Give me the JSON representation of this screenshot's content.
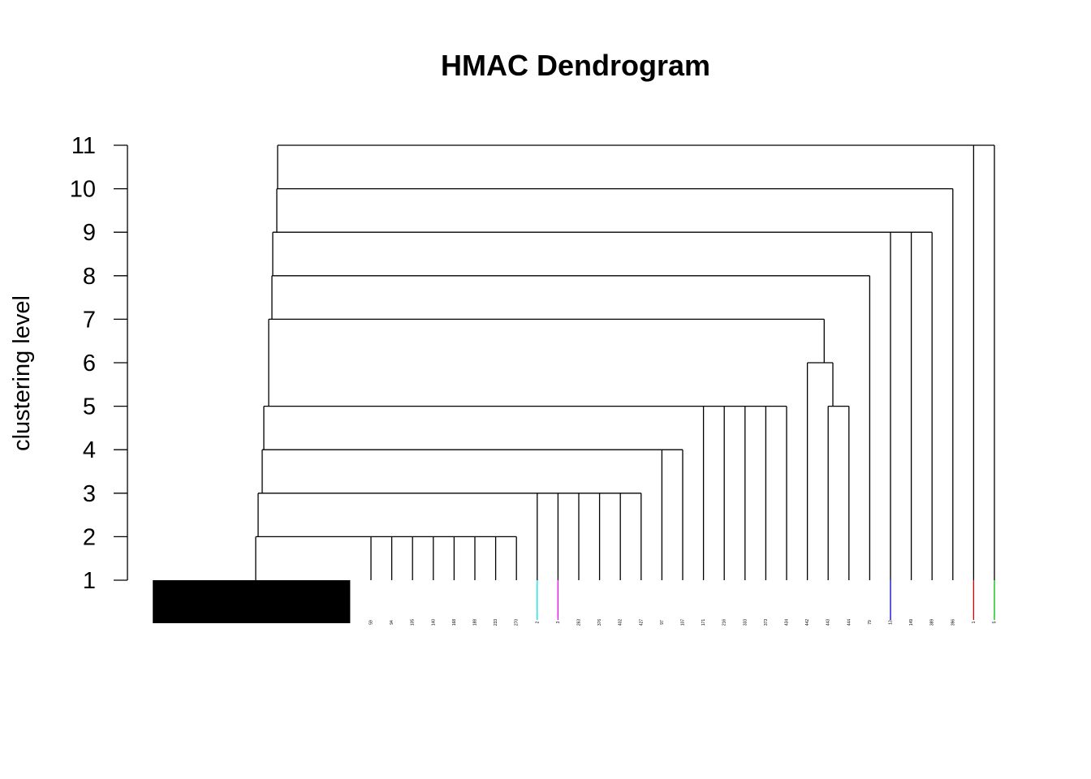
{
  "chart_data": {
    "type": "dendrogram",
    "title": "HMAC Dendrogram",
    "ylabel": "clustering level",
    "xlabel": "",
    "ylim": [
      1,
      11
    ],
    "y_ticks": [
      1,
      2,
      3,
      4,
      5,
      6,
      7,
      8,
      9,
      10,
      11
    ],
    "grid": false,
    "legend": "none",
    "dense_leaf_block": {
      "x_start": 0.5,
      "x_end": 10.0
    },
    "leaves": [
      {
        "label": "59",
        "color": "#000000"
      },
      {
        "label": "94",
        "color": "#000000"
      },
      {
        "label": "105",
        "color": "#000000"
      },
      {
        "label": "140",
        "color": "#000000"
      },
      {
        "label": "168",
        "color": "#000000"
      },
      {
        "label": "188",
        "color": "#000000"
      },
      {
        "label": "233",
        "color": "#000000"
      },
      {
        "label": "270",
        "color": "#000000"
      },
      {
        "label": "2",
        "color": "#00e5ee"
      },
      {
        "label": "3",
        "color": "#ff00ff"
      },
      {
        "label": "263",
        "color": "#000000"
      },
      {
        "label": "376",
        "color": "#000000"
      },
      {
        "label": "402",
        "color": "#000000"
      },
      {
        "label": "427",
        "color": "#000000"
      },
      {
        "label": "97",
        "color": "#000000"
      },
      {
        "label": "107",
        "color": "#000000"
      },
      {
        "label": "171",
        "color": "#000000"
      },
      {
        "label": "216",
        "color": "#000000"
      },
      {
        "label": "333",
        "color": "#000000"
      },
      {
        "label": "373",
        "color": "#000000"
      },
      {
        "label": "434",
        "color": "#000000"
      },
      {
        "label": "442",
        "color": "#000000"
      },
      {
        "label": "443",
        "color": "#000000"
      },
      {
        "label": "444",
        "color": "#000000"
      },
      {
        "label": "79",
        "color": "#000000"
      },
      {
        "label": "13",
        "color": "#0000cd"
      },
      {
        "label": "149",
        "color": "#000000"
      },
      {
        "label": "389",
        "color": "#000000"
      },
      {
        "label": "396",
        "color": "#000000"
      },
      {
        "label": "1",
        "color": "#dd0000"
      },
      {
        "label": "5",
        "color": "#00bb00"
      }
    ],
    "merges": [
      {
        "level": 2,
        "x": 4.7,
        "children": [
          [
            "cluster",
            1.2
          ],
          [
            "leaf",
            11
          ],
          [
            "leaf",
            12
          ],
          [
            "leaf",
            13
          ],
          [
            "leaf",
            14
          ],
          [
            "leaf",
            15
          ],
          [
            "leaf",
            16
          ],
          [
            "leaf",
            17
          ],
          [
            "leaf",
            18
          ]
        ]
      },
      {
        "level": 3,
        "x": 5.65,
        "children": [
          [
            "node",
            0
          ],
          [
            "leaf",
            19
          ],
          [
            "leaf",
            20
          ],
          [
            "leaf",
            21
          ],
          [
            "leaf",
            22
          ],
          [
            "leaf",
            23
          ],
          [
            "leaf",
            24
          ]
        ]
      },
      {
        "level": 4,
        "x": 5.9,
        "children": [
          [
            "node",
            1
          ],
          [
            "leaf",
            25
          ],
          [
            "leaf",
            26
          ]
        ]
      },
      {
        "level": 5,
        "x": 6.25,
        "children": [
          [
            "node",
            2
          ],
          [
            "leaf",
            27
          ],
          [
            "leaf",
            28
          ],
          [
            "leaf",
            29
          ],
          [
            "leaf",
            30
          ],
          [
            "leaf",
            31
          ]
        ]
      },
      {
        "level": 5,
        "x": 33.5,
        "children": [
          [
            "leaf",
            33
          ],
          [
            "leaf",
            34
          ]
        ]
      },
      {
        "level": 6,
        "x": 32.5,
        "children": [
          [
            "leaf",
            32
          ],
          [
            "node",
            4
          ]
        ]
      },
      {
        "level": 7,
        "x": 6.5,
        "children": [
          [
            "node",
            3
          ],
          [
            "node",
            5
          ]
        ]
      },
      {
        "level": 8,
        "x": 6.7,
        "children": [
          [
            "node",
            6
          ],
          [
            "leaf",
            35
          ]
        ]
      },
      {
        "level": 9,
        "x": 6.85,
        "children": [
          [
            "node",
            7
          ],
          [
            "leaf",
            36
          ],
          [
            "leaf",
            37
          ],
          [
            "leaf",
            38
          ]
        ]
      },
      {
        "level": 10,
        "x": 6.85,
        "children": [
          [
            "node",
            8
          ],
          [
            "leaf",
            39
          ]
        ]
      },
      {
        "level": 11,
        "x": 6.9,
        "children": [
          [
            "node",
            9
          ],
          [
            "leaf",
            40
          ],
          [
            "leaf",
            41
          ]
        ]
      }
    ]
  }
}
